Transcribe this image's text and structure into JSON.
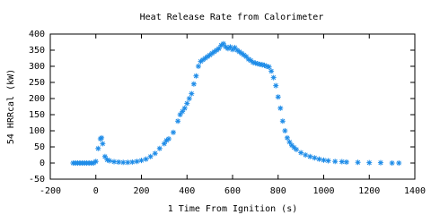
{
  "chart_data": {
    "type": "scatter",
    "title": "Heat Release Rate from Calorimeter",
    "x_label": "1 Time From Ignition (s)",
    "y_label": "54 HRRcal (kW)",
    "color": "#1e8ce8",
    "marker": "star",
    "grid": false,
    "xlim": [
      -200,
      1400
    ],
    "xticks": [
      -200,
      0,
      200,
      400,
      600,
      800,
      1000,
      1200,
      1400
    ],
    "ylim": [
      -50,
      400
    ],
    "yticks": [
      -50,
      0,
      50,
      100,
      150,
      200,
      250,
      300,
      350,
      400
    ],
    "x": [
      -100,
      -90,
      -80,
      -70,
      -60,
      -50,
      -40,
      -30,
      -20,
      -10,
      0,
      10,
      20,
      25,
      30,
      40,
      50,
      60,
      80,
      100,
      120,
      140,
      160,
      180,
      200,
      220,
      240,
      260,
      280,
      300,
      310,
      320,
      340,
      360,
      370,
      380,
      390,
      400,
      410,
      420,
      430,
      440,
      450,
      460,
      470,
      480,
      490,
      500,
      510,
      520,
      530,
      540,
      550,
      560,
      570,
      580,
      590,
      600,
      610,
      620,
      630,
      640,
      650,
      660,
      670,
      680,
      690,
      700,
      710,
      720,
      730,
      740,
      750,
      760,
      770,
      780,
      790,
      800,
      810,
      820,
      830,
      840,
      850,
      860,
      870,
      880,
      900,
      920,
      940,
      960,
      980,
      1000,
      1020,
      1050,
      1080,
      1100,
      1150,
      1200,
      1250,
      1300,
      1330
    ],
    "values": [
      0,
      0,
      0,
      0,
      0,
      0,
      0,
      0,
      0,
      0,
      5,
      45,
      75,
      78,
      60,
      20,
      10,
      7,
      4,
      3,
      2,
      2,
      3,
      5,
      8,
      12,
      20,
      30,
      45,
      60,
      70,
      75,
      95,
      130,
      150,
      160,
      170,
      185,
      200,
      215,
      245,
      270,
      300,
      315,
      320,
      325,
      330,
      335,
      340,
      345,
      350,
      355,
      365,
      370,
      360,
      355,
      360,
      352,
      358,
      350,
      345,
      340,
      335,
      330,
      322,
      318,
      312,
      310,
      308,
      306,
      305,
      303,
      300,
      298,
      285,
      265,
      240,
      205,
      170,
      130,
      100,
      78,
      65,
      55,
      48,
      42,
      32,
      25,
      20,
      16,
      12,
      9,
      7,
      5,
      4,
      3,
      2,
      1,
      1,
      0,
      0
    ]
  }
}
